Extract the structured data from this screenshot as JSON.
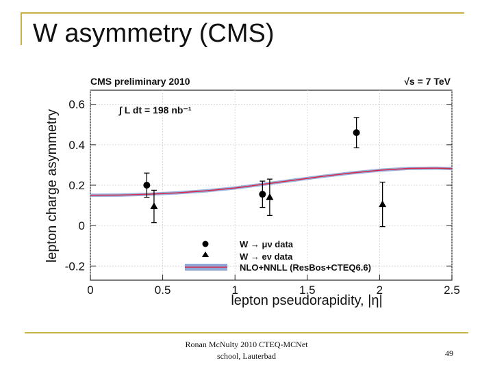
{
  "slide": {
    "title": "W asymmetry (CMS)",
    "footer_line1": "Ronan McNulty 2010 CTEQ-MCNet",
    "footer_line2": "school, Lauterbad",
    "page_number": "49"
  },
  "chart_data": {
    "type": "scatter",
    "header_left": "CMS preliminary 2010",
    "header_right": "√s = 7 TeV",
    "lumi_label": "∫ L dt = 198 nb⁻¹",
    "xlabel": "lepton pseudorapidity, |η|",
    "ylabel": "lepton charge asymmetry",
    "xlim": [
      0,
      2.5
    ],
    "ylim": [
      -0.27,
      0.67
    ],
    "x_ticks": [
      0,
      0.5,
      1,
      1.5,
      2,
      2.5
    ],
    "x_tick_labels": [
      "0",
      "0.5",
      "1",
      "1.5",
      "2",
      "2.5"
    ],
    "y_ticks": [
      -0.2,
      0,
      0.2,
      0.4,
      0.6
    ],
    "y_tick_labels": [
      "-0.2",
      "0",
      "0.2",
      "0.4",
      "0.6"
    ],
    "grid": true,
    "series": [
      {
        "name": "W → μν data",
        "marker": "circle",
        "color": "#000000",
        "x": [
          0.39,
          1.19,
          1.84
        ],
        "y": [
          0.2,
          0.155,
          0.46
        ],
        "err": [
          0.06,
          0.065,
          0.075
        ]
      },
      {
        "name": "W → eν data",
        "marker": "triangle",
        "color": "#000000",
        "x": [
          0.44,
          1.24,
          2.02
        ],
        "y": [
          0.095,
          0.14,
          0.105
        ],
        "err": [
          0.08,
          0.09,
          0.11
        ]
      }
    ],
    "theory": {
      "name": "NLO+NNLL (ResBos+CTEQ6.6)",
      "band_color": "#8fa6d6",
      "line_color": "#d6284a",
      "x": [
        0,
        0.2,
        0.4,
        0.6,
        0.8,
        1.0,
        1.2,
        1.4,
        1.6,
        1.8,
        2.0,
        2.2,
        2.4,
        2.5
      ],
      "y": [
        0.15,
        0.151,
        0.155,
        0.162,
        0.172,
        0.186,
        0.205,
        0.224,
        0.243,
        0.26,
        0.274,
        0.283,
        0.284,
        0.282
      ],
      "band_halfwidth": 0.008
    },
    "legend_position": "bottom-right"
  }
}
